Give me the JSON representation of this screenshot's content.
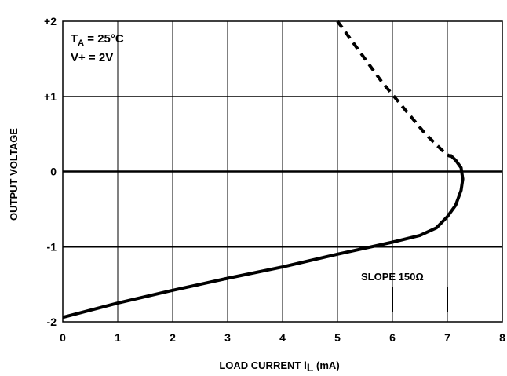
{
  "chart_data": {
    "type": "line",
    "xlabel": "LOAD CURRENT",
    "xlabel_symbol": "I",
    "xlabel_subscript": "L",
    "xlabel_unit": "(mA)",
    "ylabel": "OUTPUT VOLTAGE",
    "xlim": [
      0,
      8
    ],
    "ylim": [
      -2,
      2
    ],
    "x_ticks": [
      0,
      1,
      2,
      3,
      4,
      5,
      6,
      7,
      8
    ],
    "x_tick_labels": [
      "0",
      "1",
      "2",
      "3",
      "4",
      "5",
      "6",
      "7",
      "8"
    ],
    "y_ticks": [
      2,
      1,
      0,
      -1,
      -2
    ],
    "y_tick_labels": [
      "+2",
      "+1",
      "0",
      "-1",
      "-2"
    ],
    "grid": true,
    "conditions": {
      "ta_symbol": "T",
      "ta_subscript": "A",
      "ta_value": " = 25°C",
      "vplus": "V+ = 2V"
    },
    "annotation": {
      "text": "SLOPE 150Ω",
      "markers_x": [
        6,
        7
      ]
    },
    "series": [
      {
        "style": "dashed",
        "x": [
          5.0,
          5.4,
          5.8,
          6.2,
          6.6,
          6.95,
          7.05
        ],
        "y": [
          2.0,
          1.6,
          1.2,
          0.85,
          0.5,
          0.25,
          0.2
        ]
      },
      {
        "style": "solid",
        "x": [
          0,
          1,
          2,
          3,
          4,
          5,
          5.5,
          6.0,
          6.5,
          6.8,
          7.0,
          7.15,
          7.25,
          7.28,
          7.25,
          7.15,
          7.05
        ],
        "y": [
          -1.94,
          -1.75,
          -1.58,
          -1.42,
          -1.27,
          -1.1,
          -1.02,
          -0.94,
          -0.85,
          -0.75,
          -0.6,
          -0.45,
          -0.25,
          -0.1,
          0.05,
          0.15,
          0.22
        ]
      }
    ]
  }
}
